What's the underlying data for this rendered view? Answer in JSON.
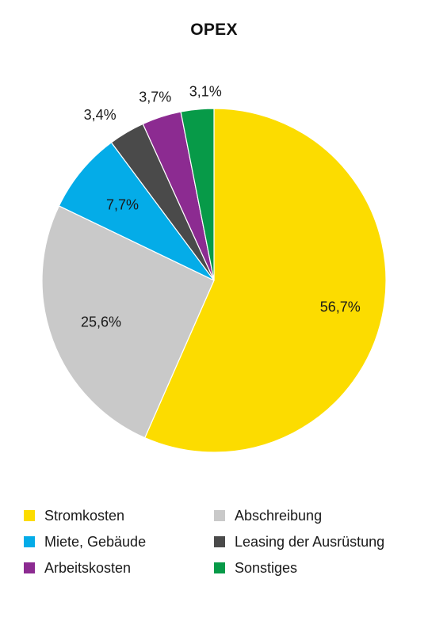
{
  "chart_data": {
    "type": "pie",
    "title": "OPEX",
    "slices": [
      {
        "name": "Stromkosten",
        "value": 56.7,
        "label": "56,7%",
        "color": "#fcdc00"
      },
      {
        "name": "Abschreibung",
        "value": 25.6,
        "label": "25,6%",
        "color": "#c9c9c9"
      },
      {
        "name": "Miete, Gebäude",
        "value": 7.7,
        "label": "7,7%",
        "color": "#04ace8"
      },
      {
        "name": "Leasing der Ausrüstung",
        "value": 3.4,
        "label": "3,4%",
        "color": "#4a4a4a"
      },
      {
        "name": "Arbeitskosten",
        "value": 3.7,
        "label": "3,7%",
        "color": "#8c2b91"
      },
      {
        "name": "Sonstiges",
        "value": 3.1,
        "label": "3,1%",
        "color": "#079a48"
      }
    ],
    "legend": [
      {
        "label": "Stromkosten",
        "color": "#fcdc00"
      },
      {
        "label": "Abschreibung",
        "color": "#c9c9c9"
      },
      {
        "label": "Miete, Gebäude",
        "color": "#04ace8"
      },
      {
        "label": "Leasing der Ausrüstung",
        "color": "#4a4a4a"
      },
      {
        "label": "Arbeitskosten",
        "color": "#8c2b91"
      },
      {
        "label": "Sonstiges",
        "color": "#079a48"
      }
    ],
    "legend_placement": "bottom",
    "direction": "clockwise",
    "start": "top"
  }
}
